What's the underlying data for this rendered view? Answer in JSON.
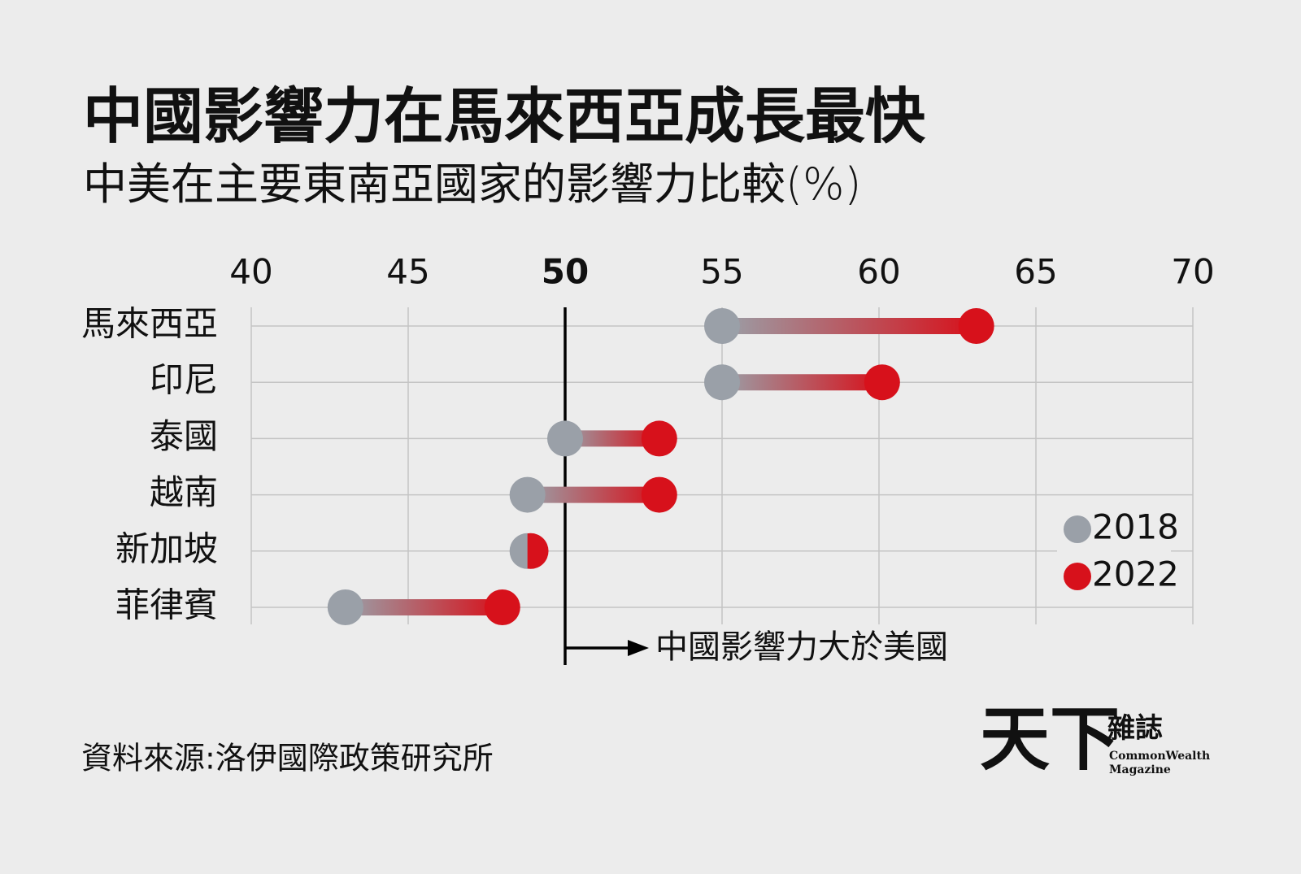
{
  "chart_data": {
    "type": "dumbbell",
    "title": "中國影響力在馬來西亞成長最快",
    "subtitle": "中美在主要東南亞國家的影響力比較(%)",
    "categories": [
      "馬來西亞",
      "印尼",
      "泰國",
      "越南",
      "新加坡",
      "菲律賓"
    ],
    "series": [
      {
        "name": "2018",
        "color": "#9aa0a8",
        "values": [
          55.0,
          55.0,
          50.0,
          48.8,
          48.8,
          43.0
        ]
      },
      {
        "name": "2022",
        "color": "#d7111b",
        "values": [
          63.1,
          60.1,
          53.0,
          53.0,
          48.9,
          48.0
        ]
      }
    ],
    "xlim": [
      40,
      70
    ],
    "xticks": [
      40,
      45,
      50,
      55,
      60,
      65,
      70
    ],
    "grid": true,
    "reference_line": {
      "value": 50,
      "label": "中國影響力大於美國"
    },
    "legend": "lower right"
  },
  "footer": {
    "source": "資料來源:洛伊國際政策研究所",
    "logo": {
      "name": "天下",
      "name2": "雜誌",
      "en1": "CommonWealth",
      "en2": "Magazine"
    }
  }
}
